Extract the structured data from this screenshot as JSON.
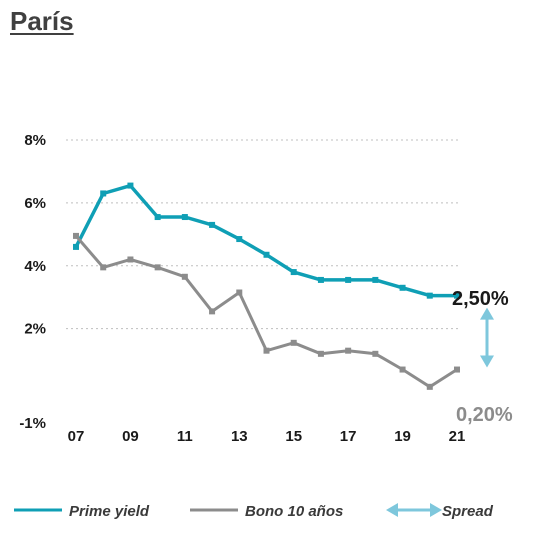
{
  "title": "París",
  "chart_data": {
    "type": "line",
    "x": [
      "07",
      "08",
      "09",
      "10",
      "11",
      "12",
      "13",
      "14",
      "15",
      "16",
      "17",
      "18",
      "19",
      "20",
      "21"
    ],
    "xticks": [
      "07",
      "09",
      "11",
      "13",
      "15",
      "17",
      "19",
      "21"
    ],
    "yticks": [
      "8%",
      "6%",
      "4%",
      "2%",
      "-1%"
    ],
    "ylim": [
      -1,
      8
    ],
    "grid": "horizontal-dotted",
    "series": [
      {
        "name": "Prime yield",
        "color": "#0f9fb5",
        "values": [
          4.6,
          6.3,
          6.55,
          5.55,
          5.55,
          5.3,
          4.85,
          4.35,
          3.8,
          3.55,
          3.55,
          3.55,
          3.3,
          3.05,
          3.05
        ]
      },
      {
        "name": "Bono 10 años",
        "color": "#8c8c8c",
        "values": [
          4.95,
          3.95,
          4.2,
          3.95,
          3.65,
          2.55,
          3.15,
          1.3,
          1.55,
          1.2,
          1.3,
          1.2,
          0.7,
          0.15,
          0.7
        ]
      }
    ],
    "annotations": [
      {
        "label": "2,50%",
        "color": "#1a1a1a"
      },
      {
        "label": "0,20%",
        "color": "#8c8c8c"
      }
    ],
    "legend": [
      {
        "label": "Prime yield",
        "color": "#0f9fb5",
        "marker": "line"
      },
      {
        "label": "Bono 10 años",
        "color": "#8c8c8c",
        "marker": "line"
      },
      {
        "label": "Spread",
        "color": "#7ec7dc",
        "marker": "double-arrow"
      }
    ],
    "legend_position": "bottom"
  }
}
